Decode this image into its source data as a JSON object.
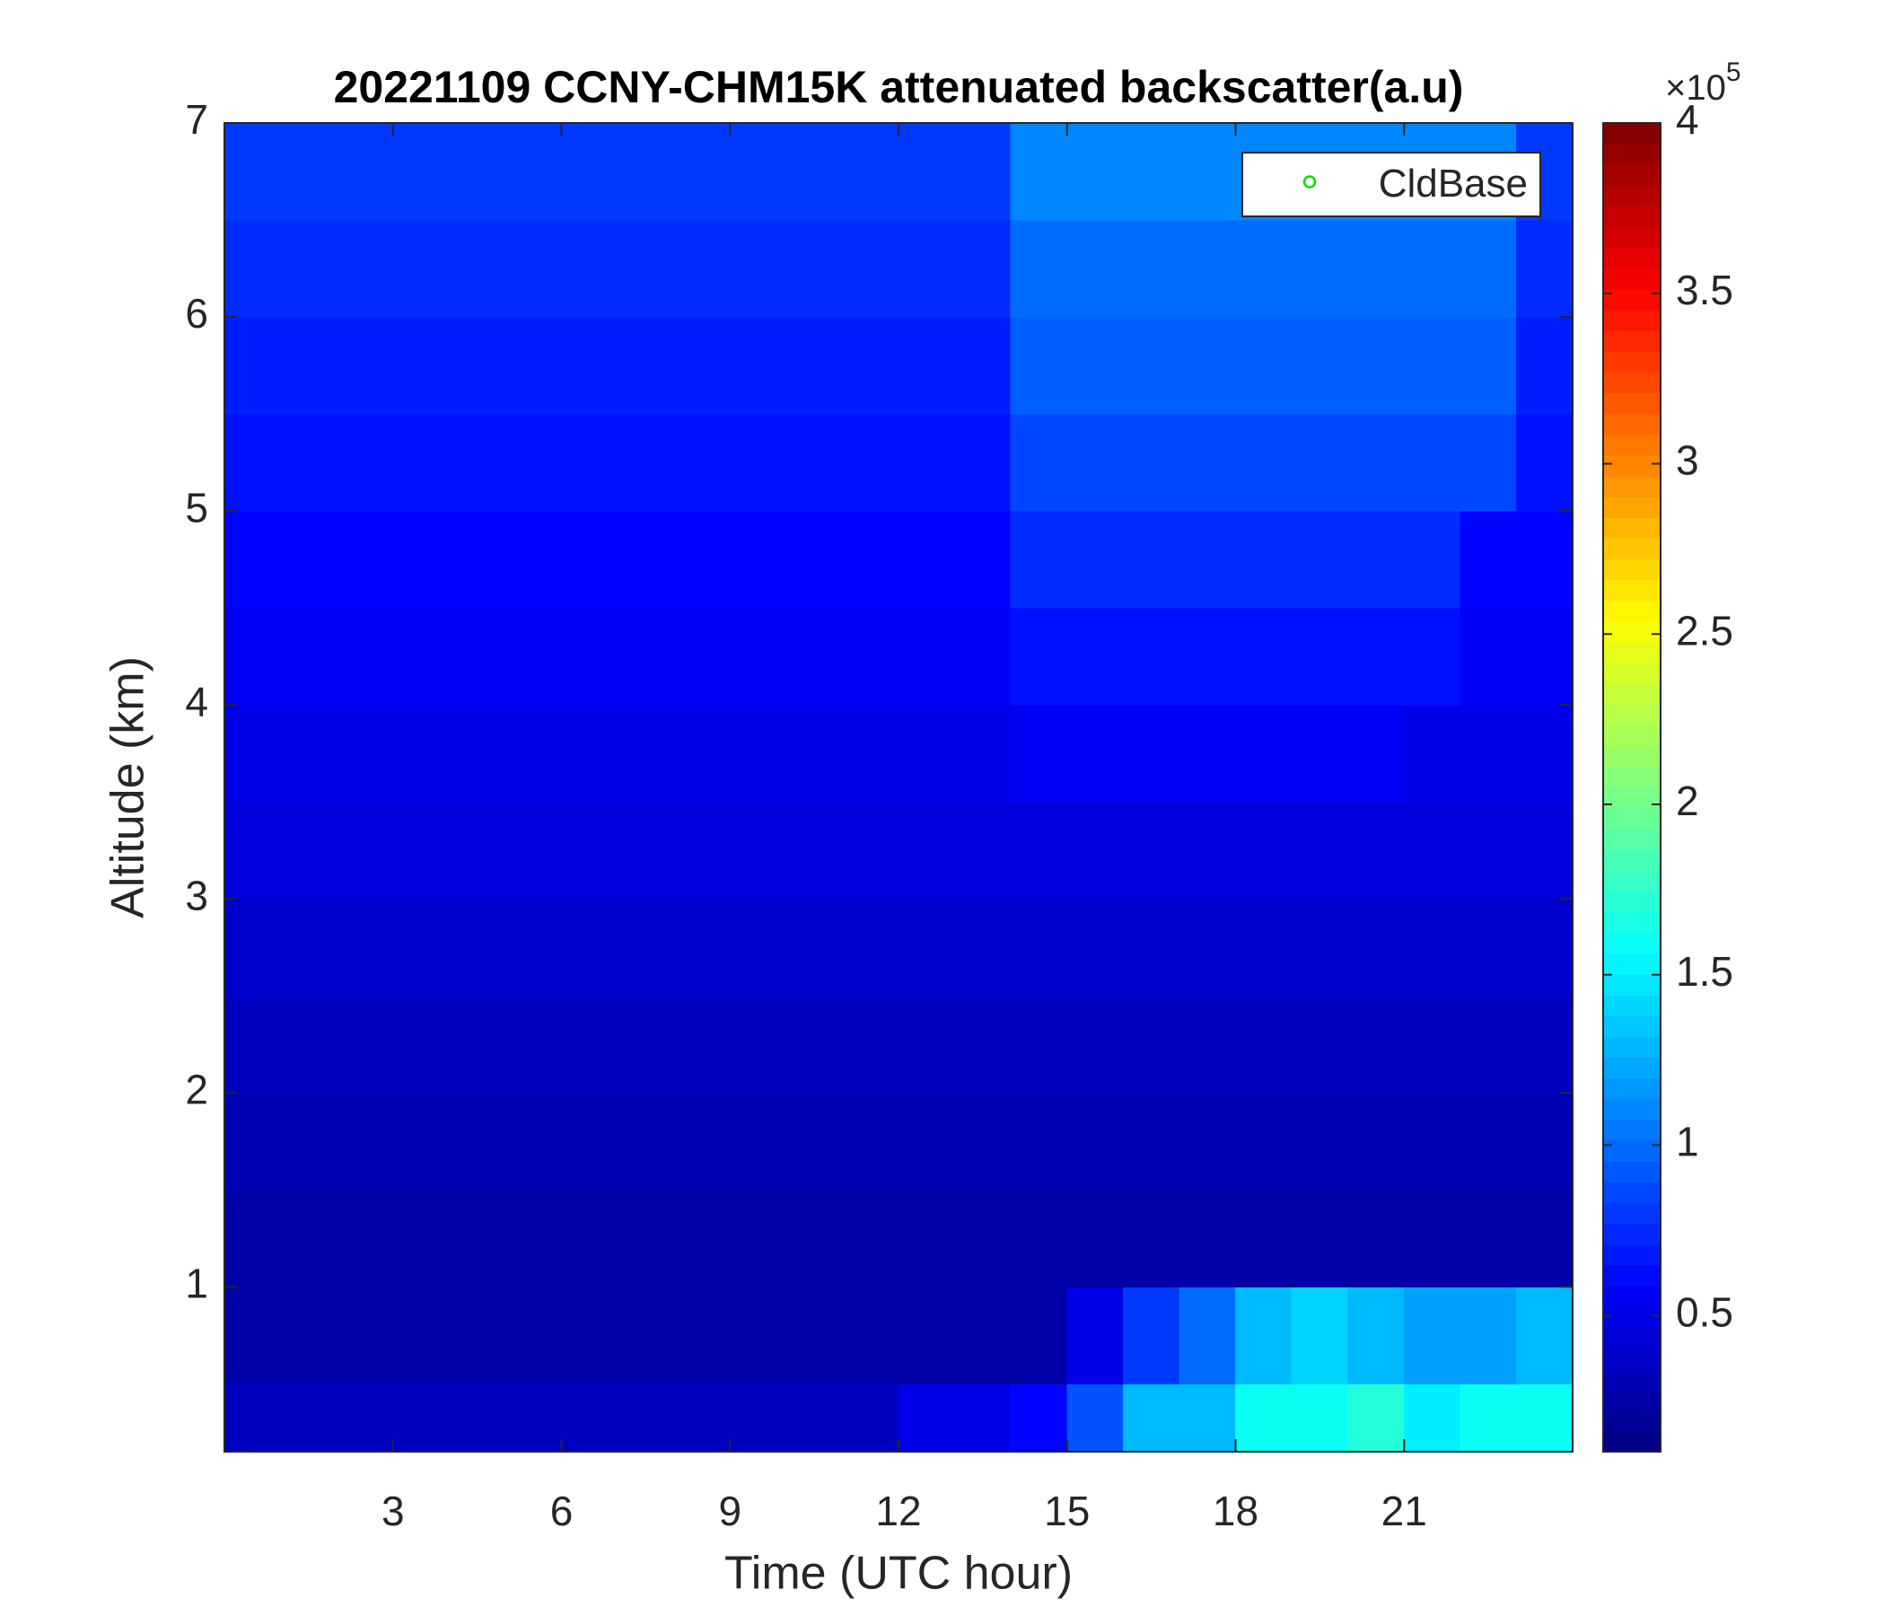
{
  "chart_data": {
    "type": "heatmap",
    "title": "20221109 CCNY-CHM15K attenuated backscatter(a.u)",
    "x_label": "Time (UTC hour)",
    "y_label": "Altitude (km)",
    "xlim": [
      0,
      24
    ],
    "xticks": [
      3,
      6,
      9,
      12,
      15,
      18,
      21
    ],
    "ylim": [
      0.15,
      7
    ],
    "yticks": [
      1,
      2,
      3,
      4,
      5,
      6,
      7
    ],
    "colormap": "jet",
    "clim": [
      0.1,
      4
    ],
    "colorbar_ticks": [
      0.5,
      1,
      1.5,
      2,
      2.5,
      3,
      3.5,
      4
    ],
    "colorbar_multiplier": {
      "base": "×10",
      "exponent": "5"
    },
    "legend": {
      "position": "northeast",
      "entries": [
        {
          "name": "CldBase",
          "color": "#00e000",
          "marker": "circle"
        }
      ]
    },
    "x": [
      0.5,
      1.5,
      2.5,
      3.5,
      4.5,
      5.5,
      6.5,
      7.5,
      8.5,
      9.5,
      10.5,
      11.5,
      12.5,
      13.5,
      14.5,
      15.5,
      16.5,
      17.5,
      18.5,
      19.5,
      20.5,
      21.5,
      22.5,
      23.5
    ],
    "y": [
      0.25,
      0.75,
      1.25,
      1.75,
      2.25,
      2.75,
      3.25,
      3.75,
      4.25,
      4.75,
      5.25,
      5.75,
      6.25,
      6.75
    ],
    "z": [
      [
        0.35,
        0.35,
        0.35,
        0.35,
        0.35,
        0.35,
        0.35,
        0.35,
        0.35,
        0.35,
        0.35,
        0.35,
        0.5,
        0.5,
        0.6,
        0.9,
        1.3,
        1.3,
        1.6,
        1.6,
        1.7,
        1.5,
        1.6,
        1.6
      ],
      [
        0.25,
        0.25,
        0.25,
        0.25,
        0.25,
        0.25,
        0.25,
        0.25,
        0.25,
        0.25,
        0.25,
        0.25,
        0.25,
        0.25,
        0.25,
        0.5,
        0.8,
        1.0,
        1.3,
        1.4,
        1.3,
        1.2,
        1.2,
        1.3
      ],
      [
        0.25,
        0.25,
        0.25,
        0.25,
        0.25,
        0.25,
        0.25,
        0.25,
        0.25,
        0.25,
        0.25,
        0.25,
        0.25,
        0.25,
        0.25,
        0.25,
        0.25,
        0.25,
        0.25,
        0.25,
        0.25,
        0.25,
        0.25,
        0.25
      ],
      [
        0.3,
        0.3,
        0.3,
        0.3,
        0.3,
        0.3,
        0.3,
        0.3,
        0.3,
        0.3,
        0.3,
        0.3,
        0.3,
        0.3,
        0.3,
        0.3,
        0.3,
        0.3,
        0.3,
        0.3,
        0.3,
        0.3,
        0.3,
        0.3
      ],
      [
        0.35,
        0.35,
        0.35,
        0.35,
        0.35,
        0.35,
        0.35,
        0.35,
        0.35,
        0.35,
        0.35,
        0.35,
        0.35,
        0.35,
        0.35,
        0.35,
        0.35,
        0.35,
        0.35,
        0.35,
        0.35,
        0.35,
        0.35,
        0.35
      ],
      [
        0.4,
        0.4,
        0.4,
        0.4,
        0.4,
        0.4,
        0.4,
        0.4,
        0.4,
        0.4,
        0.4,
        0.4,
        0.4,
        0.4,
        0.4,
        0.4,
        0.4,
        0.4,
        0.4,
        0.4,
        0.4,
        0.4,
        0.4,
        0.4
      ],
      [
        0.45,
        0.45,
        0.45,
        0.45,
        0.45,
        0.45,
        0.45,
        0.45,
        0.45,
        0.45,
        0.45,
        0.45,
        0.45,
        0.45,
        0.45,
        0.45,
        0.45,
        0.45,
        0.45,
        0.45,
        0.45,
        0.45,
        0.45,
        0.45
      ],
      [
        0.5,
        0.5,
        0.5,
        0.5,
        0.5,
        0.5,
        0.5,
        0.5,
        0.5,
        0.5,
        0.5,
        0.5,
        0.5,
        0.5,
        0.55,
        0.55,
        0.55,
        0.55,
        0.55,
        0.55,
        0.55,
        0.5,
        0.5,
        0.5
      ],
      [
        0.55,
        0.55,
        0.55,
        0.55,
        0.55,
        0.55,
        0.55,
        0.55,
        0.55,
        0.55,
        0.55,
        0.55,
        0.55,
        0.55,
        0.65,
        0.65,
        0.65,
        0.65,
        0.65,
        0.65,
        0.65,
        0.65,
        0.55,
        0.55
      ],
      [
        0.6,
        0.6,
        0.6,
        0.6,
        0.6,
        0.6,
        0.6,
        0.6,
        0.6,
        0.6,
        0.6,
        0.6,
        0.6,
        0.6,
        0.75,
        0.75,
        0.75,
        0.75,
        0.75,
        0.75,
        0.75,
        0.75,
        0.6,
        0.6
      ],
      [
        0.65,
        0.65,
        0.65,
        0.65,
        0.65,
        0.65,
        0.65,
        0.65,
        0.65,
        0.65,
        0.65,
        0.65,
        0.65,
        0.65,
        0.85,
        0.85,
        0.85,
        0.85,
        0.85,
        0.85,
        0.85,
        0.85,
        0.85,
        0.65
      ],
      [
        0.7,
        0.7,
        0.7,
        0.7,
        0.7,
        0.7,
        0.7,
        0.7,
        0.7,
        0.7,
        0.7,
        0.7,
        0.7,
        0.7,
        0.95,
        0.95,
        0.95,
        0.95,
        0.95,
        0.95,
        0.95,
        0.95,
        0.95,
        0.7
      ],
      [
        0.75,
        0.75,
        0.75,
        0.75,
        0.75,
        0.75,
        0.75,
        0.75,
        0.75,
        0.75,
        0.75,
        0.75,
        0.75,
        0.75,
        1.0,
        1.0,
        1.0,
        1.0,
        1.0,
        1.0,
        1.0,
        1.0,
        1.0,
        0.75
      ],
      [
        0.8,
        0.8,
        0.8,
        0.8,
        0.8,
        0.8,
        0.8,
        0.8,
        0.8,
        0.8,
        0.8,
        0.8,
        0.8,
        0.8,
        1.1,
        1.1,
        1.1,
        1.1,
        1.1,
        1.1,
        1.1,
        1.1,
        1.1,
        0.8
      ]
    ]
  }
}
